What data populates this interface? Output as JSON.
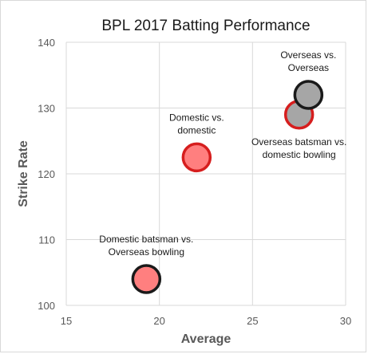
{
  "chart_data": {
    "type": "scatter",
    "title": "BPL 2017 Batting Performance",
    "xlabel": "Average",
    "ylabel": "Strike Rate",
    "xlim": [
      15,
      30
    ],
    "ylim": [
      100,
      140
    ],
    "xticks": [
      15,
      20,
      25,
      30
    ],
    "yticks": [
      100,
      110,
      120,
      130,
      140
    ],
    "grid": true,
    "legend": "none",
    "points": [
      {
        "x": 19.3,
        "y": 104.0,
        "fill": "#ff7f7f",
        "stroke": "#1a1a1a",
        "label": [
          "Domestic batsman vs.",
          "Overseas bowling"
        ],
        "label_side": "above"
      },
      {
        "x": 22.0,
        "y": 122.5,
        "fill": "#ff7f7f",
        "stroke": "#d61e1e",
        "label": [
          "Domestic vs.",
          "domestic"
        ],
        "label_side": "above"
      },
      {
        "x": 27.5,
        "y": 129.0,
        "fill": "#a6a6a6",
        "stroke": "#d61e1e",
        "label": [
          "Overseas batsman vs.",
          "domestic bowling"
        ],
        "label_side": "below"
      },
      {
        "x": 28.0,
        "y": 132.0,
        "fill": "#a6a6a6",
        "stroke": "#1a1a1a",
        "label": [
          "Overseas vs.",
          "Overseas"
        ],
        "label_side": "above"
      }
    ]
  }
}
